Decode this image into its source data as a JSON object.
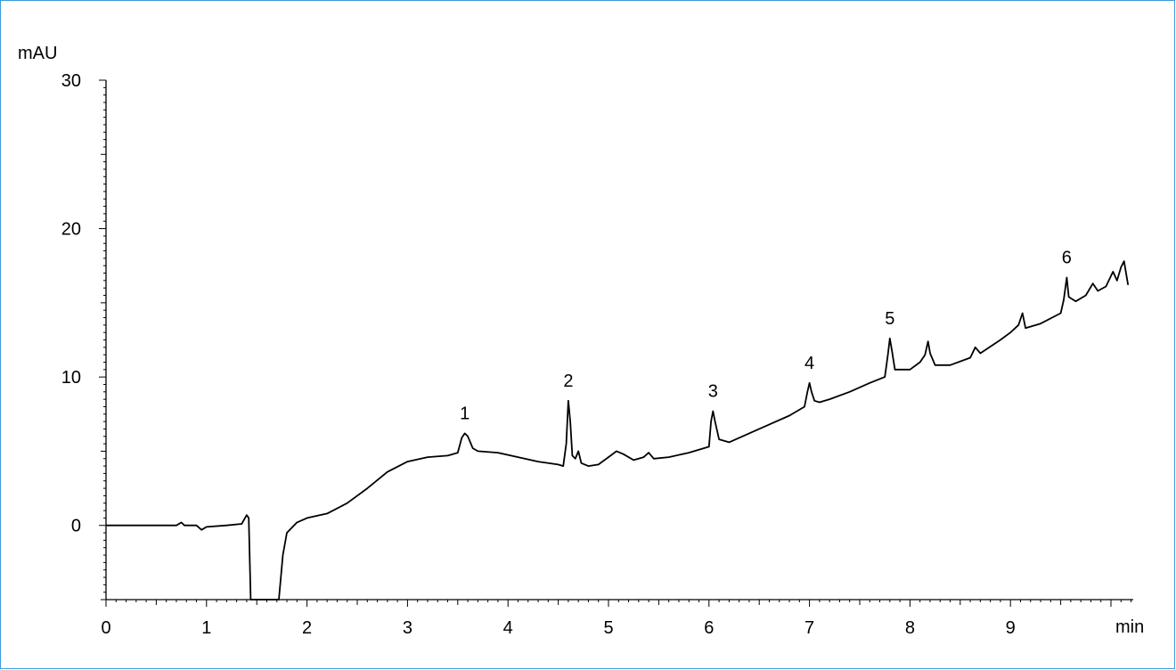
{
  "chart_data": {
    "type": "line",
    "title": "",
    "xlabel": "min",
    "ylabel": "mAU",
    "xlim": [
      0,
      10.17
    ],
    "ylim": [
      -5,
      30
    ],
    "x_ticks": [
      0,
      1,
      2,
      3,
      4,
      5,
      6,
      7,
      8,
      9
    ],
    "y_ticks": [
      0,
      10,
      20,
      30
    ],
    "grid": false,
    "series": [
      {
        "color": "#000000",
        "points": [
          [
            0.0,
            0.0
          ],
          [
            0.2,
            0.0
          ],
          [
            0.5,
            0.0
          ],
          [
            0.7,
            0.0
          ],
          [
            0.75,
            0.2
          ],
          [
            0.78,
            0.0
          ],
          [
            0.9,
            0.0
          ],
          [
            0.95,
            -0.3
          ],
          [
            1.0,
            -0.1
          ],
          [
            1.2,
            0.0
          ],
          [
            1.35,
            0.1
          ],
          [
            1.4,
            0.7
          ],
          [
            1.42,
            0.5
          ],
          [
            1.44,
            -5.0
          ],
          [
            1.72,
            -5.0
          ],
          [
            1.76,
            -2.0
          ],
          [
            1.8,
            -0.5
          ],
          [
            1.9,
            0.2
          ],
          [
            2.0,
            0.5
          ],
          [
            2.2,
            0.8
          ],
          [
            2.4,
            1.5
          ],
          [
            2.6,
            2.5
          ],
          [
            2.8,
            3.6
          ],
          [
            3.0,
            4.3
          ],
          [
            3.2,
            4.6
          ],
          [
            3.4,
            4.7
          ],
          [
            3.5,
            4.9
          ],
          [
            3.54,
            5.9
          ],
          [
            3.57,
            6.2
          ],
          [
            3.6,
            6.0
          ],
          [
            3.65,
            5.2
          ],
          [
            3.7,
            5.0
          ],
          [
            3.9,
            4.9
          ],
          [
            4.1,
            4.6
          ],
          [
            4.3,
            4.3
          ],
          [
            4.5,
            4.1
          ],
          [
            4.55,
            4.0
          ],
          [
            4.58,
            5.5
          ],
          [
            4.6,
            8.4
          ],
          [
            4.62,
            7.0
          ],
          [
            4.64,
            4.7
          ],
          [
            4.67,
            4.5
          ],
          [
            4.7,
            5.0
          ],
          [
            4.73,
            4.2
          ],
          [
            4.8,
            4.0
          ],
          [
            4.9,
            4.1
          ],
          [
            5.0,
            4.6
          ],
          [
            5.08,
            5.0
          ],
          [
            5.15,
            4.8
          ],
          [
            5.25,
            4.4
          ],
          [
            5.35,
            4.6
          ],
          [
            5.4,
            4.9
          ],
          [
            5.45,
            4.5
          ],
          [
            5.6,
            4.6
          ],
          [
            5.8,
            4.9
          ],
          [
            6.0,
            5.3
          ],
          [
            6.02,
            7.0
          ],
          [
            6.04,
            7.7
          ],
          [
            6.06,
            7.0
          ],
          [
            6.1,
            5.8
          ],
          [
            6.2,
            5.6
          ],
          [
            6.4,
            6.2
          ],
          [
            6.6,
            6.8
          ],
          [
            6.8,
            7.4
          ],
          [
            6.95,
            8.0
          ],
          [
            6.98,
            9.0
          ],
          [
            7.0,
            9.6
          ],
          [
            7.02,
            9.0
          ],
          [
            7.05,
            8.4
          ],
          [
            7.1,
            8.3
          ],
          [
            7.2,
            8.5
          ],
          [
            7.4,
            9.0
          ],
          [
            7.6,
            9.6
          ],
          [
            7.75,
            10.0
          ],
          [
            7.78,
            11.5
          ],
          [
            7.8,
            12.6
          ],
          [
            7.82,
            11.8
          ],
          [
            7.85,
            10.5
          ],
          [
            8.0,
            10.5
          ],
          [
            8.1,
            11.0
          ],
          [
            8.15,
            11.5
          ],
          [
            8.18,
            12.4
          ],
          [
            8.2,
            11.6
          ],
          [
            8.25,
            10.8
          ],
          [
            8.4,
            10.8
          ],
          [
            8.6,
            11.3
          ],
          [
            8.65,
            12.0
          ],
          [
            8.7,
            11.6
          ],
          [
            8.9,
            12.5
          ],
          [
            9.0,
            13.0
          ],
          [
            9.08,
            13.5
          ],
          [
            9.12,
            14.3
          ],
          [
            9.15,
            13.3
          ],
          [
            9.3,
            13.6
          ],
          [
            9.5,
            14.3
          ],
          [
            9.53,
            15.2
          ],
          [
            9.56,
            16.7
          ],
          [
            9.58,
            15.4
          ],
          [
            9.65,
            15.1
          ],
          [
            9.75,
            15.5
          ],
          [
            9.82,
            16.3
          ],
          [
            9.87,
            15.8
          ],
          [
            9.95,
            16.1
          ],
          [
            10.02,
            17.1
          ],
          [
            10.06,
            16.5
          ],
          [
            10.1,
            17.4
          ],
          [
            10.13,
            17.8
          ],
          [
            10.17,
            16.2
          ]
        ]
      }
    ],
    "annotations": [
      {
        "text": "1",
        "x": 3.57,
        "y": 6.2
      },
      {
        "text": "2",
        "x": 4.6,
        "y": 8.4
      },
      {
        "text": "3",
        "x": 6.04,
        "y": 7.7
      },
      {
        "text": "4",
        "x": 7.0,
        "y": 9.6
      },
      {
        "text": "5",
        "x": 7.8,
        "y": 12.6
      },
      {
        "text": "6",
        "x": 9.56,
        "y": 16.7
      }
    ]
  }
}
